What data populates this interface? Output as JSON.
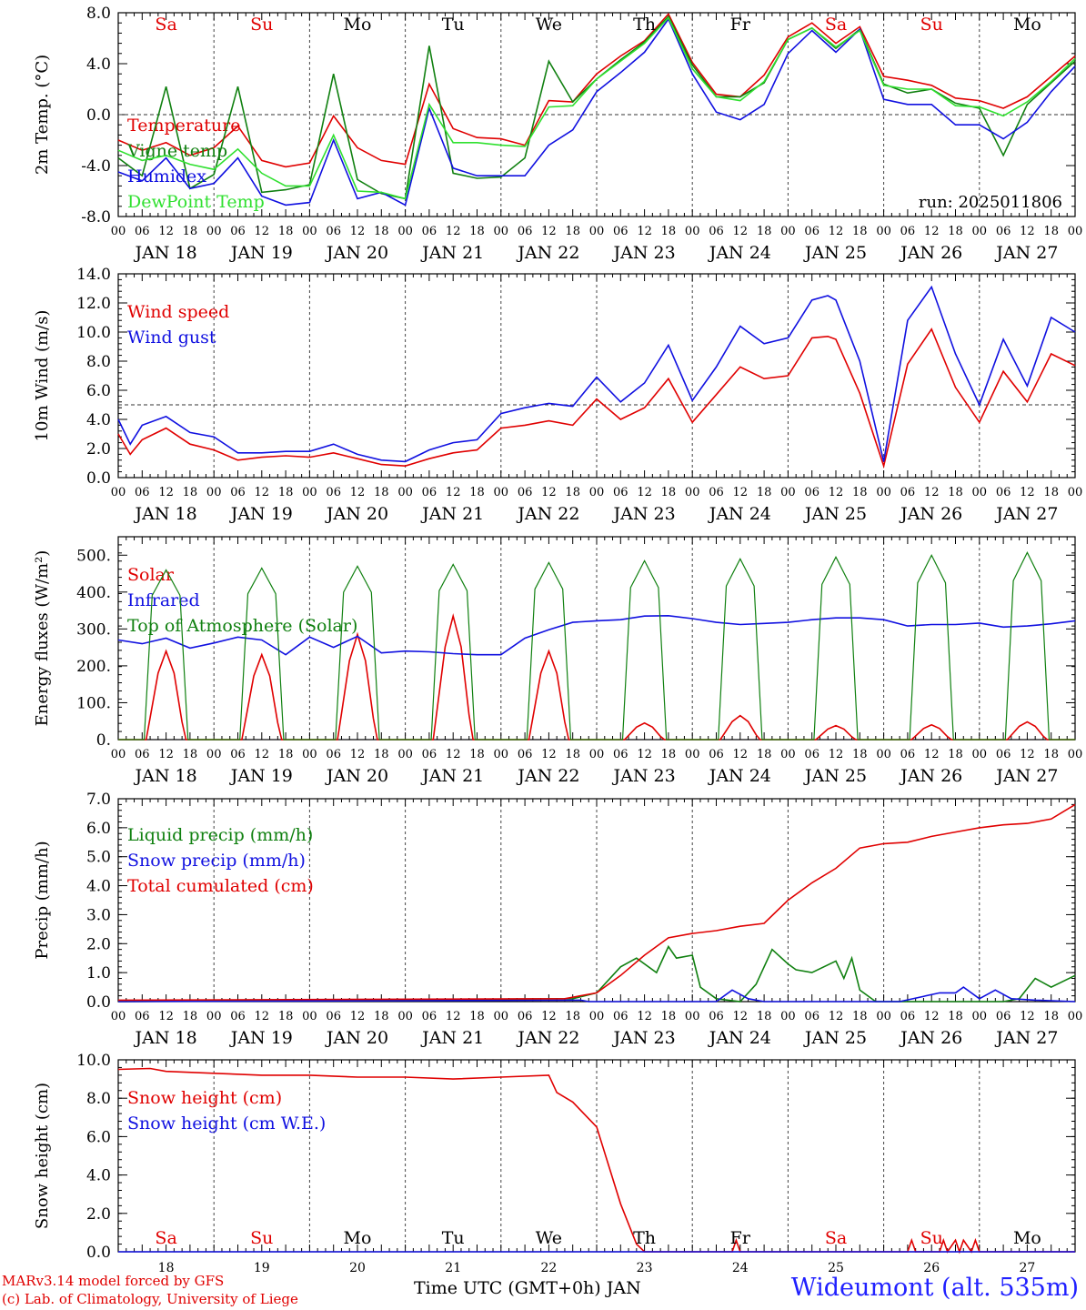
{
  "colors": {
    "red": "#e00000",
    "green": "#108010",
    "blue": "#1010e0",
    "lightgreen": "#30e030",
    "grid": "#555555"
  },
  "days": {
    "weekdays": [
      "Sa",
      "Su",
      "Mo",
      "Tu",
      "We",
      "Th",
      "Fr",
      "Sa",
      "Su",
      "Mo"
    ],
    "weekend_flags": [
      true,
      true,
      false,
      false,
      false,
      false,
      false,
      true,
      true,
      false
    ],
    "dates": [
      "JAN 18",
      "JAN 19",
      "JAN 20",
      "JAN 21",
      "JAN 22",
      "JAN 23",
      "JAN 24",
      "JAN 25",
      "JAN 26",
      "JAN 27"
    ],
    "day_numbers": [
      "18",
      "19",
      "20",
      "21",
      "22",
      "23",
      "24",
      "25",
      "26",
      "27"
    ],
    "hour_ticks": [
      "00",
      "06",
      "12",
      "18"
    ],
    "final_tick": "00"
  },
  "footer": {
    "credit_line1": "MARv3.14 model forced by GFS",
    "credit_line2": "(c) Lab. of Climatology, University of Liege",
    "x_title": "Time UTC (GMT+0h) JAN",
    "station": "Wideumont (alt. 535m)"
  },
  "chart_data": [
    {
      "type": "line",
      "ylabel": "2m Temp. (°C)",
      "ylim": [
        -8,
        8
      ],
      "yticks": [
        "8.0",
        "4.0",
        "0.0",
        "-4.0",
        "-8.0"
      ],
      "reference_line": 0,
      "run_label": "run: 2025011806",
      "x_unit": "hours since Jan 18 00 UTC",
      "series": [
        {
          "name": "Temperature",
          "color": "red",
          "x": [
            0,
            6,
            12,
            18,
            24,
            30,
            36,
            42,
            48,
            54,
            60,
            66,
            72,
            78,
            84,
            90,
            96,
            102,
            108,
            114,
            120,
            126,
            132,
            138,
            144,
            150,
            156,
            162,
            168,
            174,
            180,
            186,
            192,
            198,
            204,
            210,
            216,
            222,
            228,
            234,
            240
          ],
          "y": [
            -2.0,
            -2.8,
            -2.2,
            -3.2,
            -2.6,
            -0.9,
            -3.6,
            -4.1,
            -3.8,
            -0.1,
            -2.6,
            -3.6,
            -3.9,
            2.4,
            -1.1,
            -1.8,
            -1.9,
            -2.4,
            1.1,
            1.0,
            3.2,
            4.6,
            5.8,
            7.9,
            4.1,
            1.6,
            1.4,
            3.1,
            6.1,
            7.2,
            5.6,
            6.9,
            3.0,
            2.7,
            2.3,
            1.3,
            1.1,
            0.5,
            1.4,
            3.0,
            4.6
          ]
        },
        {
          "name": "Vigne temp",
          "color": "green",
          "x": [
            0,
            6,
            12,
            18,
            24,
            30,
            36,
            42,
            48,
            54,
            60,
            66,
            72,
            78,
            84,
            90,
            96,
            102,
            108,
            114,
            120,
            126,
            132,
            138,
            144,
            150,
            156,
            162,
            168,
            174,
            180,
            186,
            192,
            198,
            204,
            210,
            216,
            222,
            228,
            234,
            240
          ],
          "y": [
            -3.4,
            -4.8,
            2.2,
            -5.8,
            -4.7,
            2.2,
            -6.1,
            -5.9,
            -5.5,
            3.2,
            -5.1,
            -6.2,
            -6.6,
            5.4,
            -4.6,
            -5.0,
            -4.9,
            -3.4,
            4.2,
            1.0,
            2.8,
            4.3,
            5.7,
            7.7,
            3.9,
            1.4,
            1.4,
            2.5,
            5.9,
            6.8,
            5.2,
            6.7,
            2.4,
            1.7,
            2.0,
            0.9,
            0.5,
            -3.2,
            0.8,
            2.5,
            4.2
          ]
        },
        {
          "name": "Humidex",
          "color": "blue",
          "x": [
            0,
            6,
            12,
            18,
            24,
            30,
            36,
            42,
            48,
            54,
            60,
            66,
            72,
            78,
            84,
            90,
            96,
            102,
            108,
            114,
            120,
            126,
            132,
            138,
            144,
            150,
            156,
            162,
            168,
            174,
            180,
            186,
            192,
            198,
            204,
            210,
            216,
            222,
            228,
            234,
            240
          ],
          "y": [
            -4.5,
            -5.2,
            -3.4,
            -5.8,
            -5.4,
            -3.4,
            -6.4,
            -7.1,
            -6.9,
            -2.0,
            -6.6,
            -6.1,
            -7.1,
            0.5,
            -4.2,
            -4.8,
            -4.8,
            -4.8,
            -2.4,
            -1.2,
            1.8,
            3.3,
            4.9,
            7.5,
            3.2,
            0.2,
            -0.4,
            0.8,
            4.8,
            6.6,
            4.9,
            6.7,
            1.2,
            0.8,
            0.8,
            -0.8,
            -0.8,
            -1.9,
            -0.6,
            1.8,
            3.8
          ]
        },
        {
          "name": "DewPoint Temp",
          "color": "lightgreen",
          "x": [
            0,
            6,
            12,
            18,
            24,
            30,
            36,
            42,
            48,
            54,
            60,
            66,
            72,
            78,
            84,
            90,
            96,
            102,
            108,
            114,
            120,
            126,
            132,
            138,
            144,
            150,
            156,
            162,
            168,
            174,
            180,
            186,
            192,
            198,
            204,
            210,
            216,
            222,
            228,
            234,
            240
          ],
          "y": [
            -2.8,
            -3.6,
            -3.2,
            -3.9,
            -4.3,
            -2.7,
            -4.6,
            -5.6,
            -5.6,
            -1.6,
            -6.0,
            -6.1,
            -6.6,
            0.8,
            -2.2,
            -2.2,
            -2.4,
            -2.5,
            0.6,
            0.7,
            2.8,
            4.2,
            5.6,
            7.6,
            3.6,
            1.4,
            1.1,
            2.6,
            5.9,
            6.8,
            5.3,
            6.6,
            2.3,
            2.0,
            2.0,
            0.7,
            0.6,
            -0.1,
            1.0,
            2.6,
            4.4
          ]
        }
      ]
    },
    {
      "type": "line",
      "ylabel": "10m Wind (m/s)",
      "ylim": [
        0,
        14
      ],
      "yticks": [
        "14.0",
        "12.0",
        "10.0",
        "8.0",
        "6.0",
        "4.0",
        "2.0",
        "0.0"
      ],
      "reference_line": 5,
      "series": [
        {
          "name": "Wind speed",
          "color": "red",
          "x": [
            0,
            3,
            6,
            12,
            18,
            24,
            30,
            36,
            42,
            48,
            54,
            60,
            66,
            72,
            78,
            84,
            90,
            96,
            102,
            108,
            114,
            120,
            126,
            132,
            138,
            144,
            150,
            156,
            162,
            168,
            174,
            178,
            180,
            186,
            192,
            198,
            204,
            210,
            216,
            222,
            228,
            234,
            240
          ],
          "y": [
            3.0,
            1.6,
            2.6,
            3.4,
            2.3,
            1.9,
            1.2,
            1.4,
            1.5,
            1.4,
            1.7,
            1.3,
            0.9,
            0.8,
            1.3,
            1.7,
            1.9,
            3.4,
            3.6,
            3.9,
            3.6,
            5.4,
            4.0,
            4.8,
            6.8,
            3.8,
            5.7,
            7.6,
            6.8,
            7.0,
            9.6,
            9.7,
            9.5,
            5.8,
            0.8,
            7.8,
            10.2,
            6.2,
            3.8,
            7.3,
            5.2,
            8.5,
            7.7
          ]
        },
        {
          "name": "Wind gust",
          "color": "blue",
          "x": [
            0,
            3,
            6,
            12,
            18,
            24,
            30,
            36,
            42,
            48,
            54,
            60,
            66,
            72,
            78,
            84,
            90,
            96,
            102,
            108,
            114,
            120,
            126,
            132,
            138,
            144,
            150,
            156,
            162,
            168,
            174,
            178,
            180,
            186,
            192,
            198,
            204,
            210,
            216,
            222,
            228,
            234,
            240
          ],
          "y": [
            4.0,
            2.3,
            3.6,
            4.2,
            3.1,
            2.8,
            1.7,
            1.7,
            1.8,
            1.8,
            2.3,
            1.6,
            1.2,
            1.1,
            1.9,
            2.4,
            2.6,
            4.4,
            4.8,
            5.1,
            4.9,
            6.9,
            5.2,
            6.5,
            9.1,
            5.3,
            7.6,
            10.4,
            9.2,
            9.6,
            12.2,
            12.5,
            12.2,
            8.0,
            1.1,
            10.8,
            13.1,
            8.5,
            5.0,
            9.5,
            6.3,
            11.0,
            10.0
          ]
        }
      ]
    },
    {
      "type": "line",
      "ylabel": "Energy fluxes (W/m²)",
      "ylim": [
        0,
        550
      ],
      "yticks": [
        "500.",
        "400.",
        "300.",
        "200.",
        "100.",
        "0."
      ],
      "series": [
        {
          "name": "Solar",
          "color": "red",
          "peaks": [
            240,
            230,
            285,
            335,
            240,
            45,
            65,
            38,
            40,
            48
          ]
        },
        {
          "name": "Infrared",
          "color": "blue",
          "x": [
            0,
            6,
            12,
            18,
            24,
            30,
            36,
            42,
            48,
            54,
            60,
            66,
            72,
            78,
            84,
            90,
            96,
            102,
            108,
            114,
            120,
            126,
            132,
            138,
            144,
            150,
            156,
            162,
            168,
            174,
            180,
            186,
            192,
            198,
            204,
            210,
            216,
            222,
            228,
            234,
            240
          ],
          "y": [
            270,
            260,
            275,
            248,
            262,
            278,
            270,
            230,
            278,
            250,
            280,
            235,
            240,
            238,
            233,
            230,
            230,
            275,
            298,
            318,
            322,
            325,
            335,
            336,
            328,
            318,
            312,
            315,
            318,
            325,
            330,
            330,
            325,
            308,
            312,
            312,
            316,
            305,
            308,
            314,
            322
          ]
        },
        {
          "name": "Top of Atmosphere (Solar)",
          "color": "green",
          "peaks": [
            460,
            465,
            470,
            475,
            480,
            485,
            490,
            495,
            500,
            507
          ]
        }
      ]
    },
    {
      "type": "line",
      "ylabel": "Precip (mm/h)",
      "ylim": [
        0,
        7
      ],
      "yticks": [
        "7.0",
        "6.0",
        "5.0",
        "4.0",
        "3.0",
        "2.0",
        "1.0",
        "0.0"
      ],
      "series": [
        {
          "name": "Liquid precip (mm/h)",
          "color": "green",
          "x": [
            0,
            114,
            120,
            126,
            130,
            135,
            138,
            140,
            144,
            146,
            150,
            156,
            160,
            164,
            168,
            170,
            174,
            180,
            182,
            184,
            186,
            190,
            196,
            210,
            222,
            226,
            230,
            234,
            240
          ],
          "y": [
            0,
            0.1,
            0.3,
            1.2,
            1.5,
            1.0,
            1.9,
            1.5,
            1.6,
            0.5,
            0.1,
            0,
            0.6,
            1.8,
            1.3,
            1.1,
            1.0,
            1.4,
            0.8,
            1.5,
            0.4,
            0,
            0,
            0,
            0,
            0.1,
            0.8,
            0.5,
            0.9
          ]
        },
        {
          "name": "Snow precip (mm/h)",
          "color": "blue",
          "x": [
            0,
            116,
            118,
            140,
            150,
            154,
            158,
            162,
            196,
            206,
            210,
            212,
            216,
            220,
            224,
            230,
            240
          ],
          "y": [
            0,
            0.05,
            0,
            0,
            0,
            0.4,
            0.1,
            0,
            0,
            0.3,
            0.3,
            0.5,
            0.1,
            0.4,
            0.1,
            0.05,
            0
          ]
        },
        {
          "name": "Total cumulated (cm)",
          "color": "red",
          "x": [
            0,
            112,
            120,
            126,
            132,
            138,
            144,
            150,
            156,
            162,
            168,
            174,
            180,
            186,
            192,
            198,
            204,
            210,
            216,
            222,
            228,
            234,
            240
          ],
          "y": [
            0.05,
            0.1,
            0.3,
            0.9,
            1.6,
            2.2,
            2.35,
            2.45,
            2.6,
            2.7,
            3.5,
            4.1,
            4.6,
            5.3,
            5.45,
            5.5,
            5.7,
            5.85,
            6.0,
            6.1,
            6.15,
            6.3,
            6.8
          ]
        }
      ]
    },
    {
      "type": "line",
      "ylabel": "Snow height (cm)",
      "ylim": [
        0,
        10
      ],
      "yticks": [
        "10.0",
        "8.0",
        "6.0",
        "4.0",
        "2.0",
        "0.0"
      ],
      "series": [
        {
          "name": "Snow height (cm)",
          "color": "red",
          "x": [
            0,
            8,
            12,
            24,
            36,
            48,
            60,
            72,
            84,
            96,
            108,
            110,
            114,
            120,
            126,
            130,
            132,
            140,
            154,
            155,
            156,
            198,
            199,
            200,
            206,
            207,
            208,
            210,
            211,
            212,
            214,
            215,
            216,
            240
          ],
          "y": [
            9.5,
            9.55,
            9.4,
            9.3,
            9.2,
            9.2,
            9.1,
            9.1,
            9.0,
            9.1,
            9.2,
            8.3,
            7.8,
            6.5,
            2.5,
            0.4,
            0,
            0,
            0,
            0.6,
            0,
            0,
            0.6,
            0,
            0,
            0.6,
            0,
            0.6,
            0,
            0.6,
            0,
            0.6,
            0,
            0
          ]
        },
        {
          "name": "Snow height (cm W.E.)",
          "color": "blue",
          "x": [
            0,
            240
          ],
          "y": [
            0,
            0
          ]
        }
      ]
    }
  ]
}
